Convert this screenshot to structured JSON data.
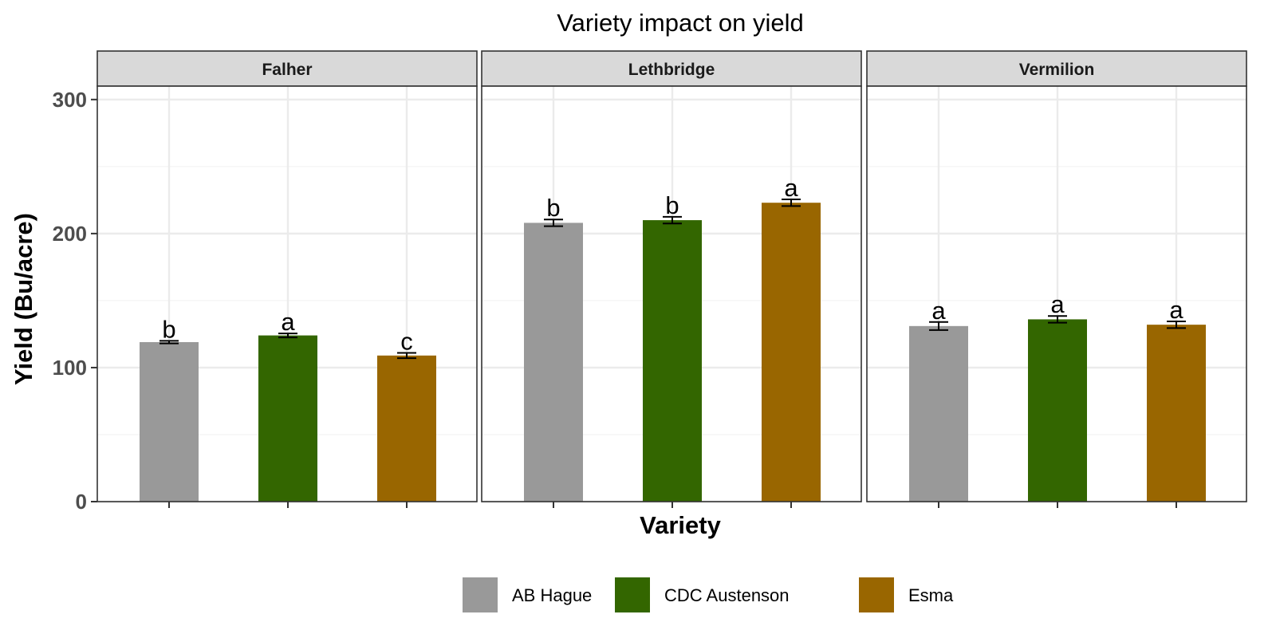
{
  "chart_data": {
    "type": "bar",
    "title": "Variety impact on yield",
    "xlabel": "Variety",
    "ylabel": "Yield (Bu/acre)",
    "ylim": [
      0,
      300
    ],
    "y_ticks": [
      "0",
      "100",
      "200",
      "300"
    ],
    "y_range": [
      0,
      310
    ],
    "grid": true,
    "legend_position": "bottom",
    "categories": [
      "AB Hague",
      "CDC Austenson",
      "Esma"
    ],
    "colors": [
      "#999999",
      "#336600",
      "#996600"
    ],
    "facets": [
      {
        "name": "Falher",
        "values": [
          119,
          124,
          109
        ],
        "errors": [
          1,
          1.5,
          2
        ],
        "letters": [
          "b",
          "a",
          "c"
        ]
      },
      {
        "name": "Lethbridge",
        "values": [
          208,
          210,
          223
        ],
        "errors": [
          2.5,
          2.5,
          2.5
        ],
        "letters": [
          "b",
          "b",
          "a"
        ]
      },
      {
        "name": "Vermilion",
        "values": [
          131,
          136,
          132
        ],
        "errors": [
          3,
          2.5,
          2.5
        ],
        "letters": [
          "a",
          "a",
          "a"
        ]
      }
    ]
  }
}
